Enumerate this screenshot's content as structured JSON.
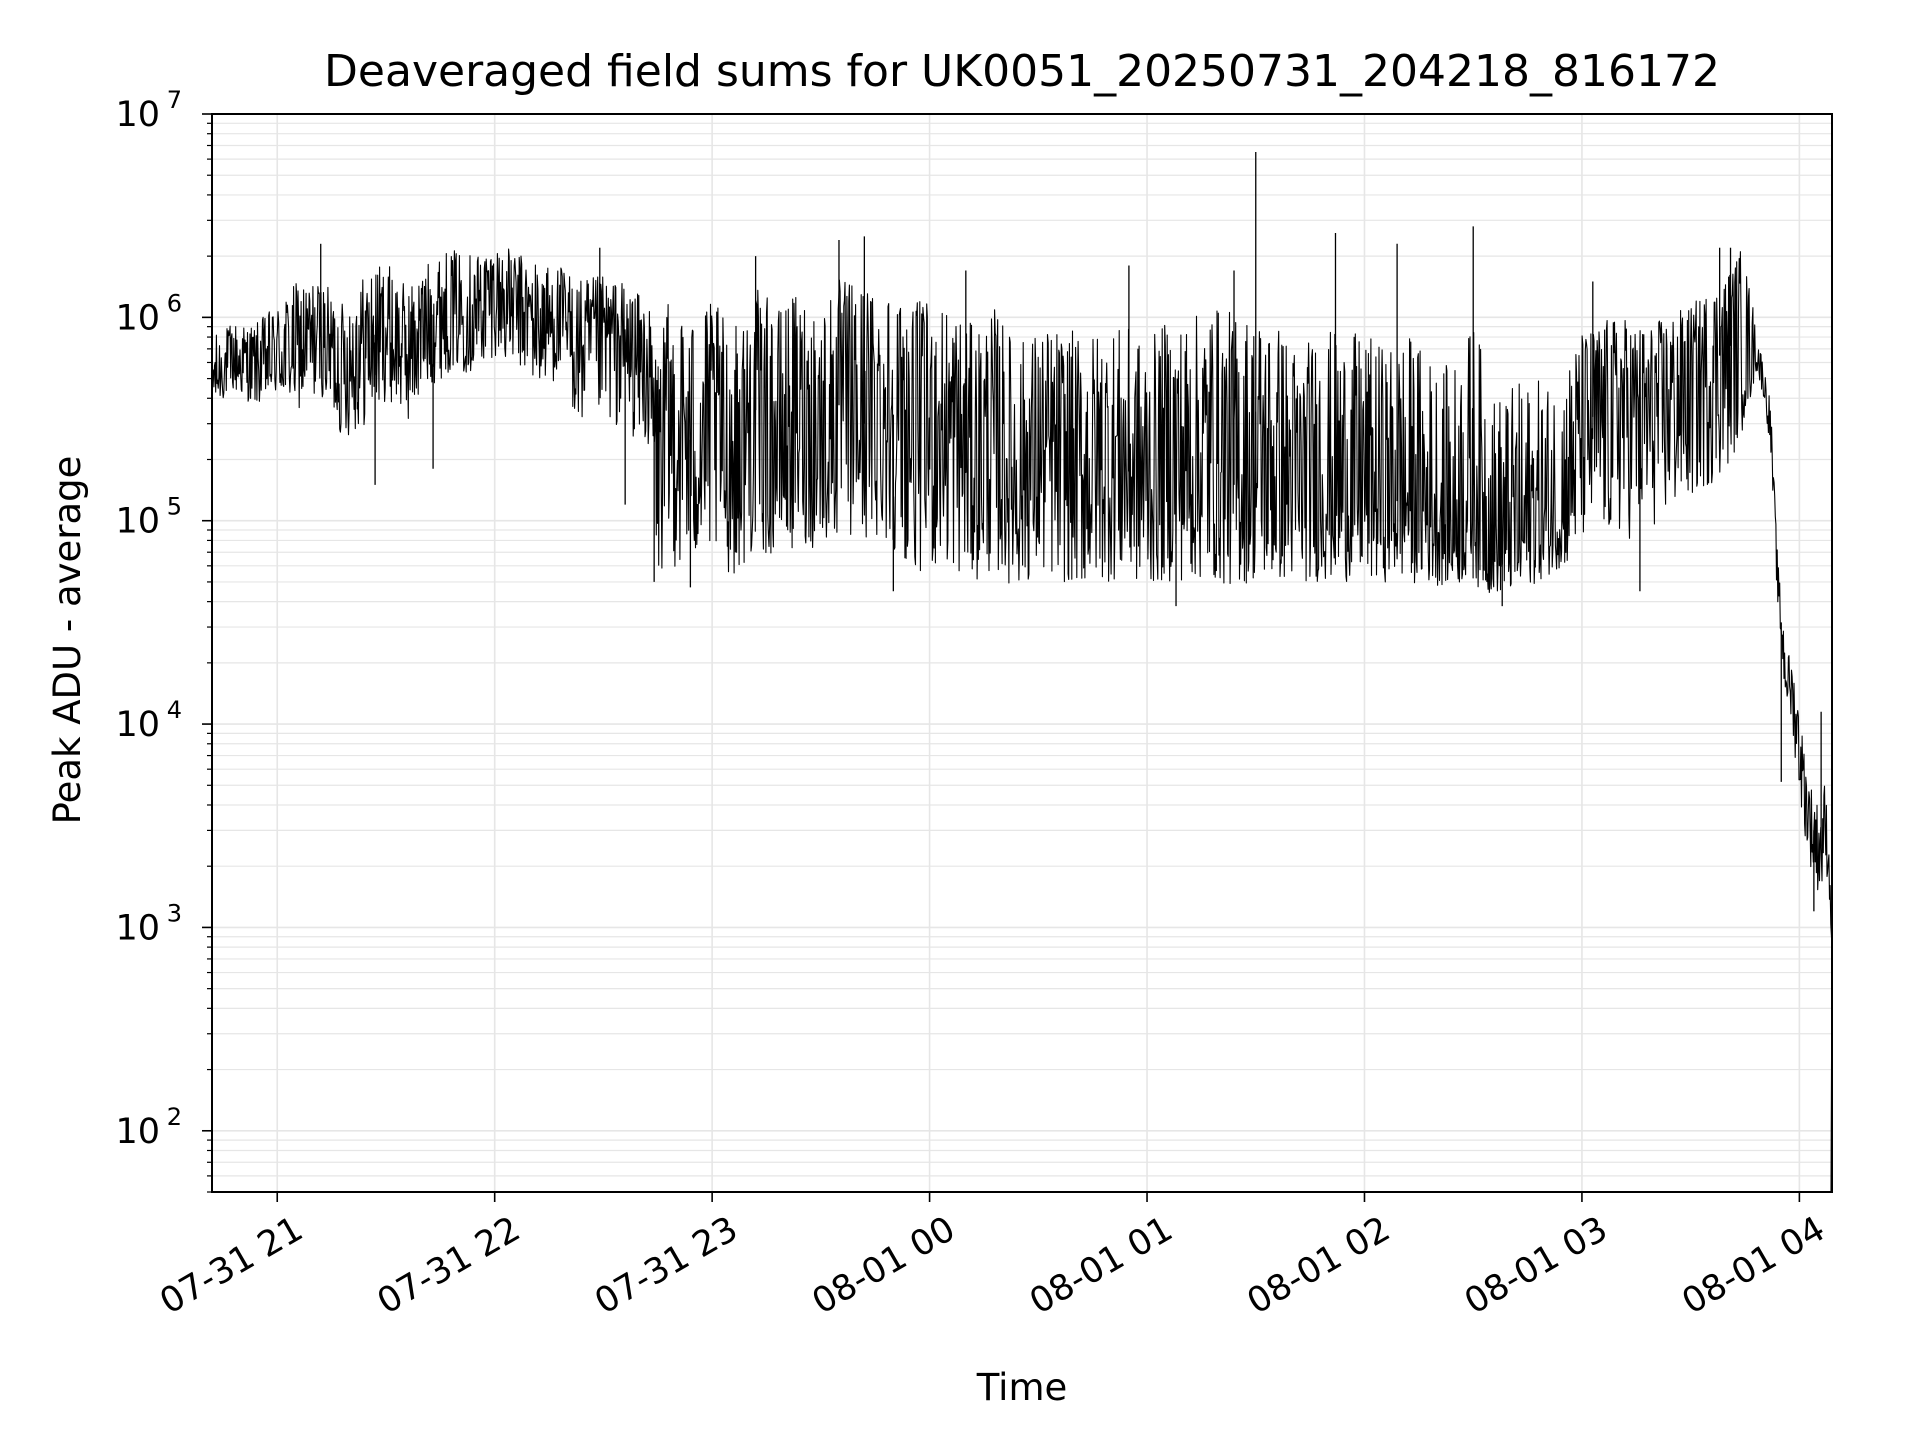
{
  "chart_data": {
    "type": "line",
    "title": "Deaveraged field sums for UK0051_20250731_204218_816172",
    "xlabel": "Time",
    "ylabel": "Peak ADU - average",
    "xlim": [
      "2025-07-31 20:42",
      "2025-08-01 04:09"
    ],
    "ylim": [
      50,
      10000000
    ],
    "yscale": "log",
    "grid": true,
    "line_color": "#000000",
    "grid_color": "#e6e6e6",
    "x_ticks": [
      {
        "value": "2025-07-31 21:00",
        "label": "07-31 21"
      },
      {
        "value": "2025-07-31 22:00",
        "label": "07-31 22"
      },
      {
        "value": "2025-07-31 23:00",
        "label": "07-31 23"
      },
      {
        "value": "2025-08-01 00:00",
        "label": "08-01 00"
      },
      {
        "value": "2025-08-01 01:00",
        "label": "08-01 01"
      },
      {
        "value": "2025-08-01 02:00",
        "label": "08-01 02"
      },
      {
        "value": "2025-08-01 03:00",
        "label": "08-01 03"
      },
      {
        "value": "2025-08-01 04:00",
        "label": "08-01 04"
      }
    ],
    "y_ticks": [
      {
        "value": 100,
        "base": "10",
        "exp": "2"
      },
      {
        "value": 1000,
        "base": "10",
        "exp": "3"
      },
      {
        "value": 10000,
        "base": "10",
        "exp": "4"
      },
      {
        "value": 100000,
        "base": "10",
        "exp": "5"
      },
      {
        "value": 1000000,
        "base": "10",
        "exp": "6"
      },
      {
        "value": 10000000,
        "base": "10",
        "exp": "7"
      }
    ],
    "series": [
      {
        "x": [
          "2025-07-31 20:42",
          "2025-07-31 20:48",
          "2025-07-31 20:54",
          "2025-07-31 21:00",
          "2025-07-31 21:06",
          "2025-07-31 21:12",
          "2025-07-31 21:18",
          "2025-07-31 21:24",
          "2025-07-31 21:30",
          "2025-07-31 21:36",
          "2025-07-31 21:42",
          "2025-07-31 21:48",
          "2025-07-31 21:54",
          "2025-07-31 22:00",
          "2025-07-31 22:06",
          "2025-07-31 22:12",
          "2025-07-31 22:18",
          "2025-07-31 22:24",
          "2025-07-31 22:30",
          "2025-07-31 22:36",
          "2025-07-31 22:42",
          "2025-07-31 22:45",
          "2025-07-31 22:48",
          "2025-07-31 22:54",
          "2025-07-31 23:00",
          "2025-07-31 23:06",
          "2025-07-31 23:12",
          "2025-07-31 23:18",
          "2025-07-31 23:24",
          "2025-07-31 23:30",
          "2025-07-31 23:36",
          "2025-07-31 23:42",
          "2025-07-31 23:48",
          "2025-07-31 23:54",
          "2025-08-01 00:00",
          "2025-08-01 00:06",
          "2025-08-01 00:12",
          "2025-08-01 00:18",
          "2025-08-01 00:24",
          "2025-08-01 00:30",
          "2025-08-01 00:36",
          "2025-08-01 00:42",
          "2025-08-01 00:48",
          "2025-08-01 00:54",
          "2025-08-01 01:00",
          "2025-08-01 01:06",
          "2025-08-01 01:12",
          "2025-08-01 01:18",
          "2025-08-01 01:24",
          "2025-08-01 01:30",
          "2025-08-01 01:36",
          "2025-08-01 01:42",
          "2025-08-01 01:48",
          "2025-08-01 01:54",
          "2025-08-01 02:00",
          "2025-08-01 02:06",
          "2025-08-01 02:12",
          "2025-08-01 02:18",
          "2025-08-01 02:24",
          "2025-08-01 02:30",
          "2025-08-01 02:36",
          "2025-08-01 02:42",
          "2025-08-01 02:48",
          "2025-08-01 02:54",
          "2025-08-01 03:00",
          "2025-08-01 03:06",
          "2025-08-01 03:12",
          "2025-08-01 03:18",
          "2025-08-01 03:24",
          "2025-08-01 03:30",
          "2025-08-01 03:36",
          "2025-08-01 03:40",
          "2025-08-01 03:44",
          "2025-08-01 03:48",
          "2025-08-01 03:50",
          "2025-08-01 03:52",
          "2025-08-01 03:54",
          "2025-08-01 03:56",
          "2025-08-01 03:58",
          "2025-08-01 04:00",
          "2025-08-01 04:02",
          "2025-08-01 04:04",
          "2025-08-01 04:06",
          "2025-08-01 04:07",
          "2025-08-01 04:08",
          "2025-08-01 04:09"
        ],
        "y": [
          500000,
          600000,
          550000,
          650000,
          700000,
          800000,
          600000,
          750000,
          900000,
          700000,
          1000000,
          1200000,
          1100000,
          1300000,
          1100000,
          900000,
          1000000,
          700000,
          800000,
          750000,
          600000,
          200000,
          300000,
          250000,
          300000,
          200000,
          350000,
          250000,
          300000,
          250000,
          400000,
          300000,
          350000,
          300000,
          300000,
          250000,
          200000,
          250000,
          150000,
          200000,
          180000,
          150000,
          200000,
          180000,
          150000,
          200000,
          180000,
          200000,
          150000,
          180000,
          150000,
          130000,
          150000,
          140000,
          150000,
          120000,
          130000,
          110000,
          80000,
          150000,
          70000,
          80000,
          90000,
          100000,
          300000,
          350000,
          400000,
          350000,
          450000,
          500000,
          600000,
          700000,
          800000,
          700000,
          500000,
          300000,
          50000,
          20000,
          15000,
          8000,
          4000,
          3000,
          2500,
          3500,
          2500,
          800
        ],
        "noise_hi": [
          1.6,
          1.6,
          1.7,
          1.8,
          2.2,
          1.9,
          2.0,
          2.2,
          2.1,
          2.0,
          1.9,
          1.8,
          1.9,
          1.8,
          1.9,
          2.1,
          1.8,
          2.2,
          2.0,
          2.0,
          2.0,
          3.5,
          4.0,
          4.0,
          4.0,
          4.5,
          4.0,
          4.5,
          4.5,
          5.0,
          4.0,
          5.0,
          4.5,
          4.0,
          4.0,
          5.0,
          4.5,
          4.5,
          5.0,
          4.5,
          5.0,
          5.5,
          4.5,
          5.0,
          5.0,
          5.0,
          5.5,
          6.0,
          7.0,
          6.0,
          6.5,
          5.5,
          6.0,
          6.0,
          5.5,
          6.0,
          6.5,
          6.0,
          7.0,
          6.5,
          6.0,
          6.0,
          5.5,
          5.0,
          2.8,
          2.8,
          2.5,
          2.6,
          2.3,
          2.3,
          2.4,
          2.4,
          2.8,
          1.3,
          1.2,
          1.3,
          1.3,
          1.3,
          1.3,
          1.5,
          1.5,
          1.5,
          1.5,
          1.5,
          1.3,
          1.0
        ],
        "noise_lo": [
          1.4,
          1.4,
          1.5,
          1.6,
          2.0,
          1.9,
          2.4,
          2.6,
          2.3,
          2.3,
          2.2,
          2.2,
          2.1,
          2.0,
          1.9,
          2.0,
          2.0,
          2.6,
          2.5,
          2.8,
          2.5,
          4.0,
          5.0,
          4.5,
          4.5,
          3.8,
          5.0,
          4.0,
          4.0,
          3.5,
          5.0,
          3.8,
          4.5,
          5.0,
          5.5,
          4.5,
          4.0,
          4.5,
          3.2,
          3.8,
          3.6,
          3.2,
          4.0,
          3.6,
          3.2,
          4.0,
          3.6,
          4.0,
          3.2,
          3.6,
          3.0,
          2.6,
          3.0,
          2.8,
          3.0,
          2.4,
          2.6,
          2.3,
          1.6,
          3.0,
          1.6,
          1.8,
          1.8,
          1.7,
          4.0,
          4.5,
          5.0,
          4.0,
          4.5,
          4.0,
          4.0,
          4.0,
          3.0,
          1.3,
          1.2,
          1.3,
          1.3,
          1.5,
          1.6,
          1.8,
          1.6,
          1.8,
          1.8,
          1.8,
          1.5,
          1.0
        ]
      }
    ],
    "spikes": [
      {
        "x": "2025-07-31 21:12",
        "y": 2300000
      },
      {
        "x": "2025-07-31 21:27",
        "y": 150000
      },
      {
        "x": "2025-07-31 21:43",
        "y": 180000
      },
      {
        "x": "2025-07-31 22:29",
        "y": 2200000
      },
      {
        "x": "2025-07-31 22:36",
        "y": 120000
      },
      {
        "x": "2025-07-31 22:44",
        "y": 50000
      },
      {
        "x": "2025-07-31 22:54",
        "y": 47000
      },
      {
        "x": "2025-07-31 23:12",
        "y": 2000000
      },
      {
        "x": "2025-07-31 23:35",
        "y": 2400000
      },
      {
        "x": "2025-07-31 23:42",
        "y": 2500000
      },
      {
        "x": "2025-07-31 23:50",
        "y": 45000
      },
      {
        "x": "2025-08-01 00:10",
        "y": 1700000
      },
      {
        "x": "2025-08-01 00:55",
        "y": 1800000
      },
      {
        "x": "2025-08-01 01:08",
        "y": 38000
      },
      {
        "x": "2025-08-01 01:24",
        "y": 1700000
      },
      {
        "x": "2025-08-01 01:30",
        "y": 6500000
      },
      {
        "x": "2025-08-01 01:52",
        "y": 2600000
      },
      {
        "x": "2025-08-01 02:09",
        "y": 2300000
      },
      {
        "x": "2025-08-01 02:30",
        "y": 2800000
      },
      {
        "x": "2025-08-01 02:38",
        "y": 38000
      },
      {
        "x": "2025-08-01 03:03",
        "y": 1500000
      },
      {
        "x": "2025-08-01 03:16",
        "y": 45000
      },
      {
        "x": "2025-08-01 03:38",
        "y": 2200000
      },
      {
        "x": "2025-08-01 03:41",
        "y": 2200000
      },
      {
        "x": "2025-08-01 03:55",
        "y": 5200
      },
      {
        "x": "2025-08-01 04:04",
        "y": 1200
      },
      {
        "x": "2025-08-01 04:06",
        "y": 11500
      }
    ]
  }
}
